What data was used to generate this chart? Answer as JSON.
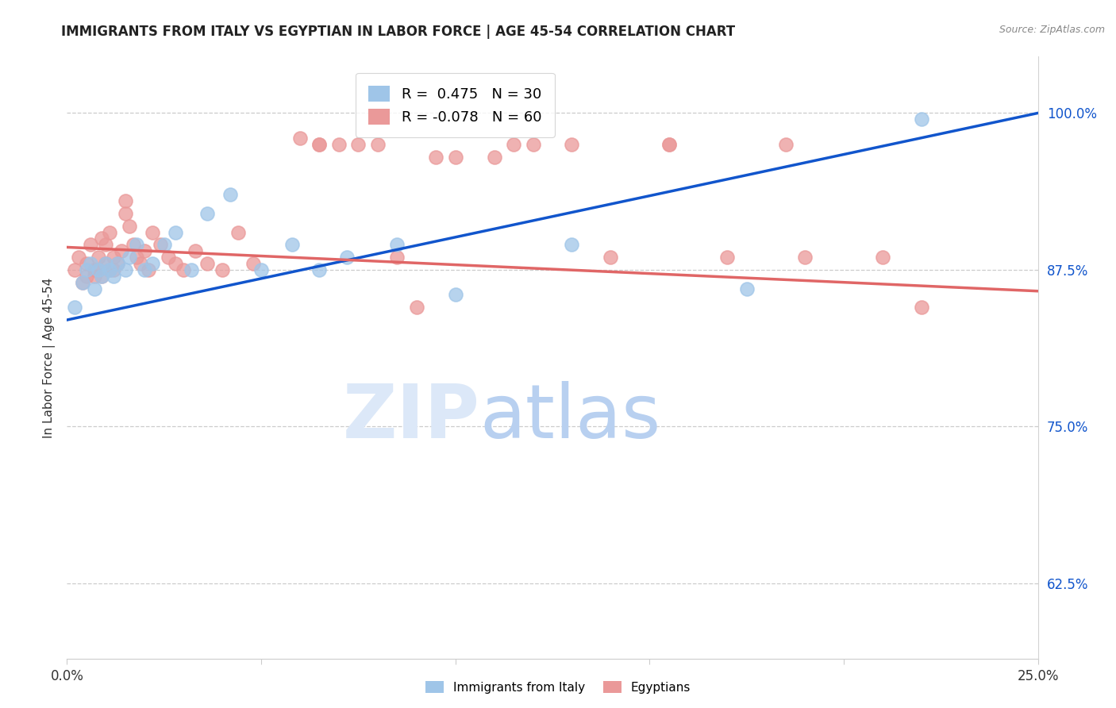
{
  "title": "IMMIGRANTS FROM ITALY VS EGYPTIAN IN LABOR FORCE | AGE 45-54 CORRELATION CHART",
  "source": "Source: ZipAtlas.com",
  "ylabel": "In Labor Force | Age 45-54",
  "yticks": [
    "62.5%",
    "75.0%",
    "87.5%",
    "100.0%"
  ],
  "ytick_vals": [
    0.625,
    0.75,
    0.875,
    1.0
  ],
  "xlim": [
    0.0,
    0.25
  ],
  "ylim": [
    0.565,
    1.045
  ],
  "legend_italy_R": "0.475",
  "legend_italy_N": "30",
  "legend_egypt_R": "-0.078",
  "legend_egypt_N": "60",
  "italy_color": "#9fc5e8",
  "egypt_color": "#ea9999",
  "italy_line_color": "#1155cc",
  "egypt_line_color": "#e06666",
  "italy_x": [
    0.002,
    0.004,
    0.005,
    0.006,
    0.007,
    0.008,
    0.009,
    0.01,
    0.011,
    0.012,
    0.013,
    0.015,
    0.016,
    0.018,
    0.02,
    0.022,
    0.025,
    0.028,
    0.032,
    0.036,
    0.042,
    0.05,
    0.058,
    0.065,
    0.072,
    0.085,
    0.1,
    0.13,
    0.175,
    0.22
  ],
  "italy_y": [
    0.845,
    0.865,
    0.875,
    0.88,
    0.86,
    0.875,
    0.87,
    0.88,
    0.875,
    0.87,
    0.88,
    0.875,
    0.885,
    0.895,
    0.875,
    0.88,
    0.895,
    0.905,
    0.875,
    0.92,
    0.935,
    0.875,
    0.895,
    0.875,
    0.885,
    0.895,
    0.855,
    0.895,
    0.86,
    0.995
  ],
  "egypt_x": [
    0.002,
    0.003,
    0.004,
    0.005,
    0.005,
    0.006,
    0.007,
    0.007,
    0.008,
    0.008,
    0.009,
    0.009,
    0.01,
    0.01,
    0.011,
    0.011,
    0.012,
    0.012,
    0.013,
    0.014,
    0.015,
    0.015,
    0.016,
    0.017,
    0.018,
    0.019,
    0.02,
    0.021,
    0.022,
    0.024,
    0.026,
    0.028,
    0.03,
    0.033,
    0.036,
    0.04,
    0.044,
    0.048,
    0.06,
    0.065,
    0.065,
    0.07,
    0.075,
    0.08,
    0.085,
    0.09,
    0.095,
    0.1,
    0.11,
    0.115,
    0.12,
    0.13,
    0.14,
    0.155,
    0.155,
    0.17,
    0.185,
    0.19,
    0.21,
    0.22
  ],
  "egypt_y": [
    0.875,
    0.885,
    0.865,
    0.88,
    0.87,
    0.895,
    0.875,
    0.87,
    0.885,
    0.875,
    0.9,
    0.87,
    0.895,
    0.88,
    0.905,
    0.875,
    0.885,
    0.875,
    0.88,
    0.89,
    0.93,
    0.92,
    0.91,
    0.895,
    0.885,
    0.88,
    0.89,
    0.875,
    0.905,
    0.895,
    0.885,
    0.88,
    0.875,
    0.89,
    0.88,
    0.875,
    0.905,
    0.88,
    0.98,
    0.975,
    0.975,
    0.975,
    0.975,
    0.975,
    0.885,
    0.845,
    0.965,
    0.965,
    0.965,
    0.975,
    0.975,
    0.975,
    0.885,
    0.975,
    0.975,
    0.885,
    0.975,
    0.885,
    0.885,
    0.845
  ],
  "italy_line_x0": 0.0,
  "italy_line_y0": 0.835,
  "italy_line_x1": 0.25,
  "italy_line_y1": 1.0,
  "egypt_line_x0": 0.0,
  "egypt_line_y0": 0.893,
  "egypt_line_x1": 0.25,
  "egypt_line_y1": 0.858
}
